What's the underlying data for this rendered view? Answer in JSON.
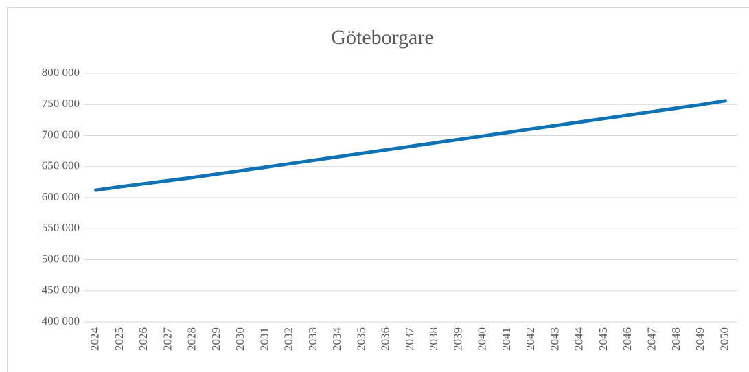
{
  "chart_data": {
    "type": "line",
    "title": "Göteborgare",
    "categories": [
      "2024",
      "2025",
      "2026",
      "2027",
      "2028",
      "2029",
      "2030",
      "2031",
      "2032",
      "2033",
      "2034",
      "2035",
      "2036",
      "2037",
      "2038",
      "2039",
      "2040",
      "2041",
      "2042",
      "2043",
      "2044",
      "2045",
      "2046",
      "2047",
      "2048",
      "2049",
      "2050"
    ],
    "series": [
      {
        "name": "Göteborgare",
        "color": "#0e72b5",
        "values": [
          612000,
          617500,
          622500,
          627500,
          632500,
          638000,
          643500,
          649000,
          654600,
          660200,
          665800,
          671400,
          677000,
          682600,
          688200,
          693800,
          699400,
          705000,
          710600,
          716200,
          721800,
          727400,
          733000,
          738600,
          744200,
          749800,
          756000
        ]
      }
    ],
    "ylim": [
      400000,
      800000
    ],
    "yticks": [
      {
        "value": 400000,
        "label": "400 000"
      },
      {
        "value": 450000,
        "label": "450 000"
      },
      {
        "value": 500000,
        "label": "500 000"
      },
      {
        "value": 550000,
        "label": "550 000"
      },
      {
        "value": 600000,
        "label": "600 000"
      },
      {
        "value": 650000,
        "label": "650 000"
      },
      {
        "value": 700000,
        "label": "700 000"
      },
      {
        "value": 750000,
        "label": "750 000"
      },
      {
        "value": 800000,
        "label": "800 000"
      }
    ],
    "grid": true
  }
}
